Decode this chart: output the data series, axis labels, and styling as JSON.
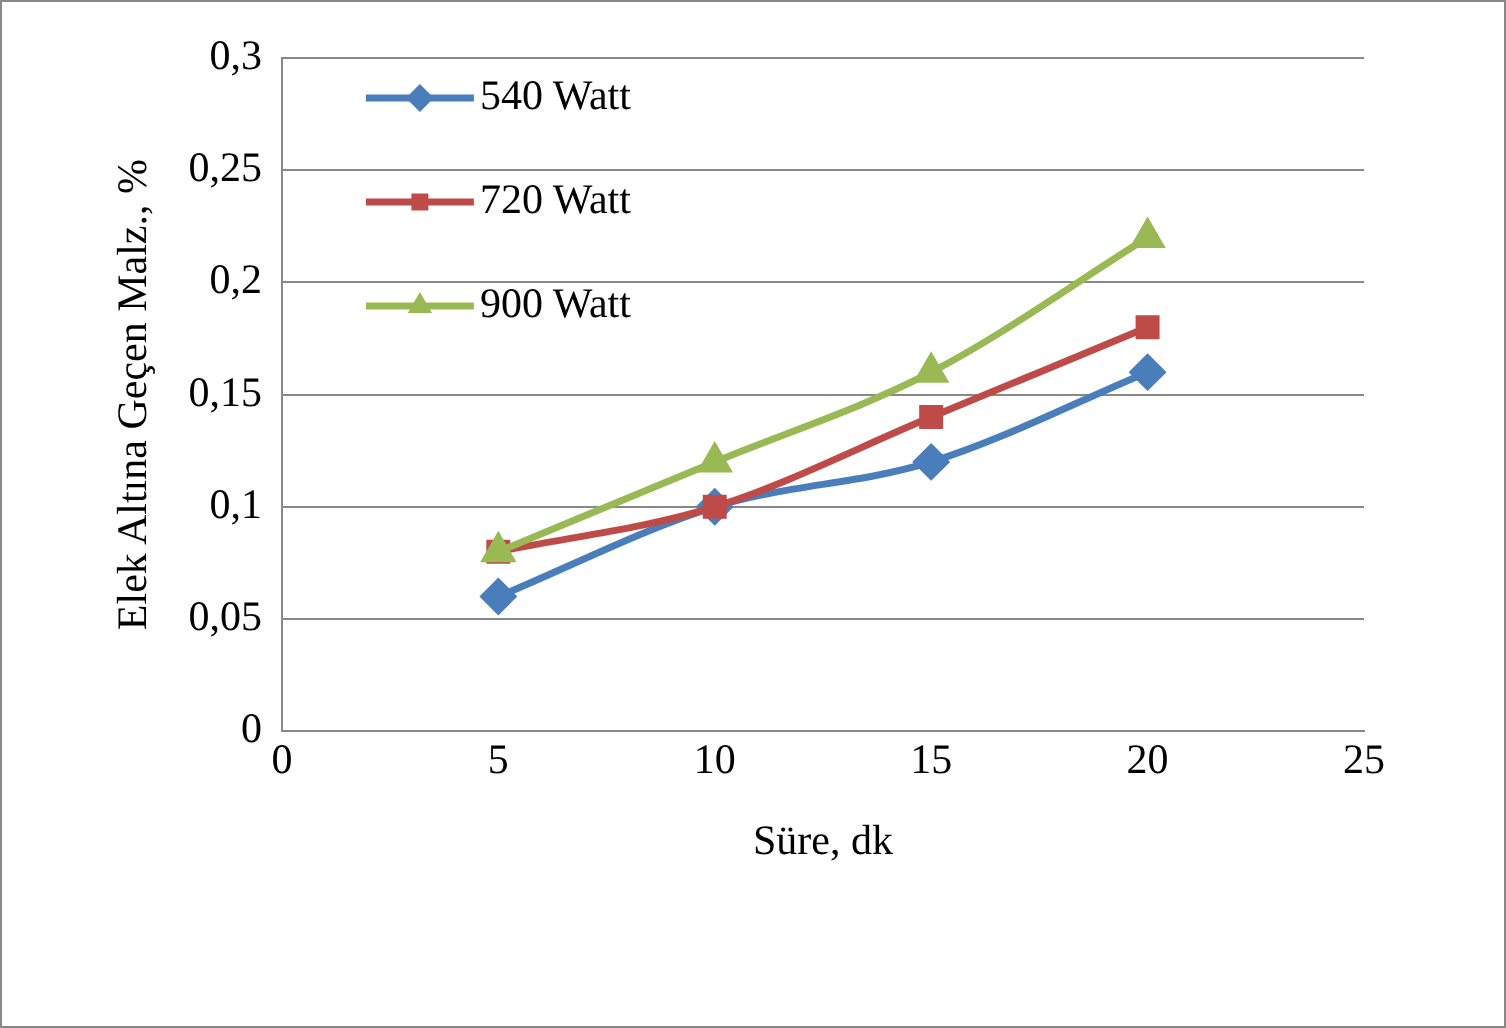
{
  "chart_data": {
    "type": "line",
    "xlabel": "Süre, dk",
    "ylabel": "Elek Altına Geçen Malz., %",
    "x": [
      5,
      10,
      15,
      20
    ],
    "series": [
      {
        "name": "540 Watt",
        "color": "#4a7ebb",
        "marker": "diamond",
        "values": [
          0.06,
          0.1,
          0.12,
          0.16
        ]
      },
      {
        "name": "720 Watt",
        "color": "#be4b48",
        "marker": "square",
        "values": [
          0.08,
          0.1,
          0.14,
          0.18
        ]
      },
      {
        "name": "900 Watt",
        "color": "#98b954",
        "marker": "triangle",
        "values": [
          0.08,
          0.12,
          0.16,
          0.22
        ]
      }
    ],
    "xlim": [
      0,
      25
    ],
    "xticks": [
      0,
      5,
      10,
      15,
      20,
      25
    ],
    "ylim": [
      0,
      0.3
    ],
    "yticks": [
      {
        "value": 0,
        "label": "0"
      },
      {
        "value": 0.05,
        "label": "0,05"
      },
      {
        "value": 0.1,
        "label": "0,1"
      },
      {
        "value": 0.15,
        "label": "0,15"
      },
      {
        "value": 0.2,
        "label": "0,2"
      },
      {
        "value": 0.25,
        "label": "0,25"
      },
      {
        "value": 0.3,
        "label": "0,3"
      }
    ],
    "grid": "y",
    "legend": "top left",
    "line_style": "solid"
  }
}
